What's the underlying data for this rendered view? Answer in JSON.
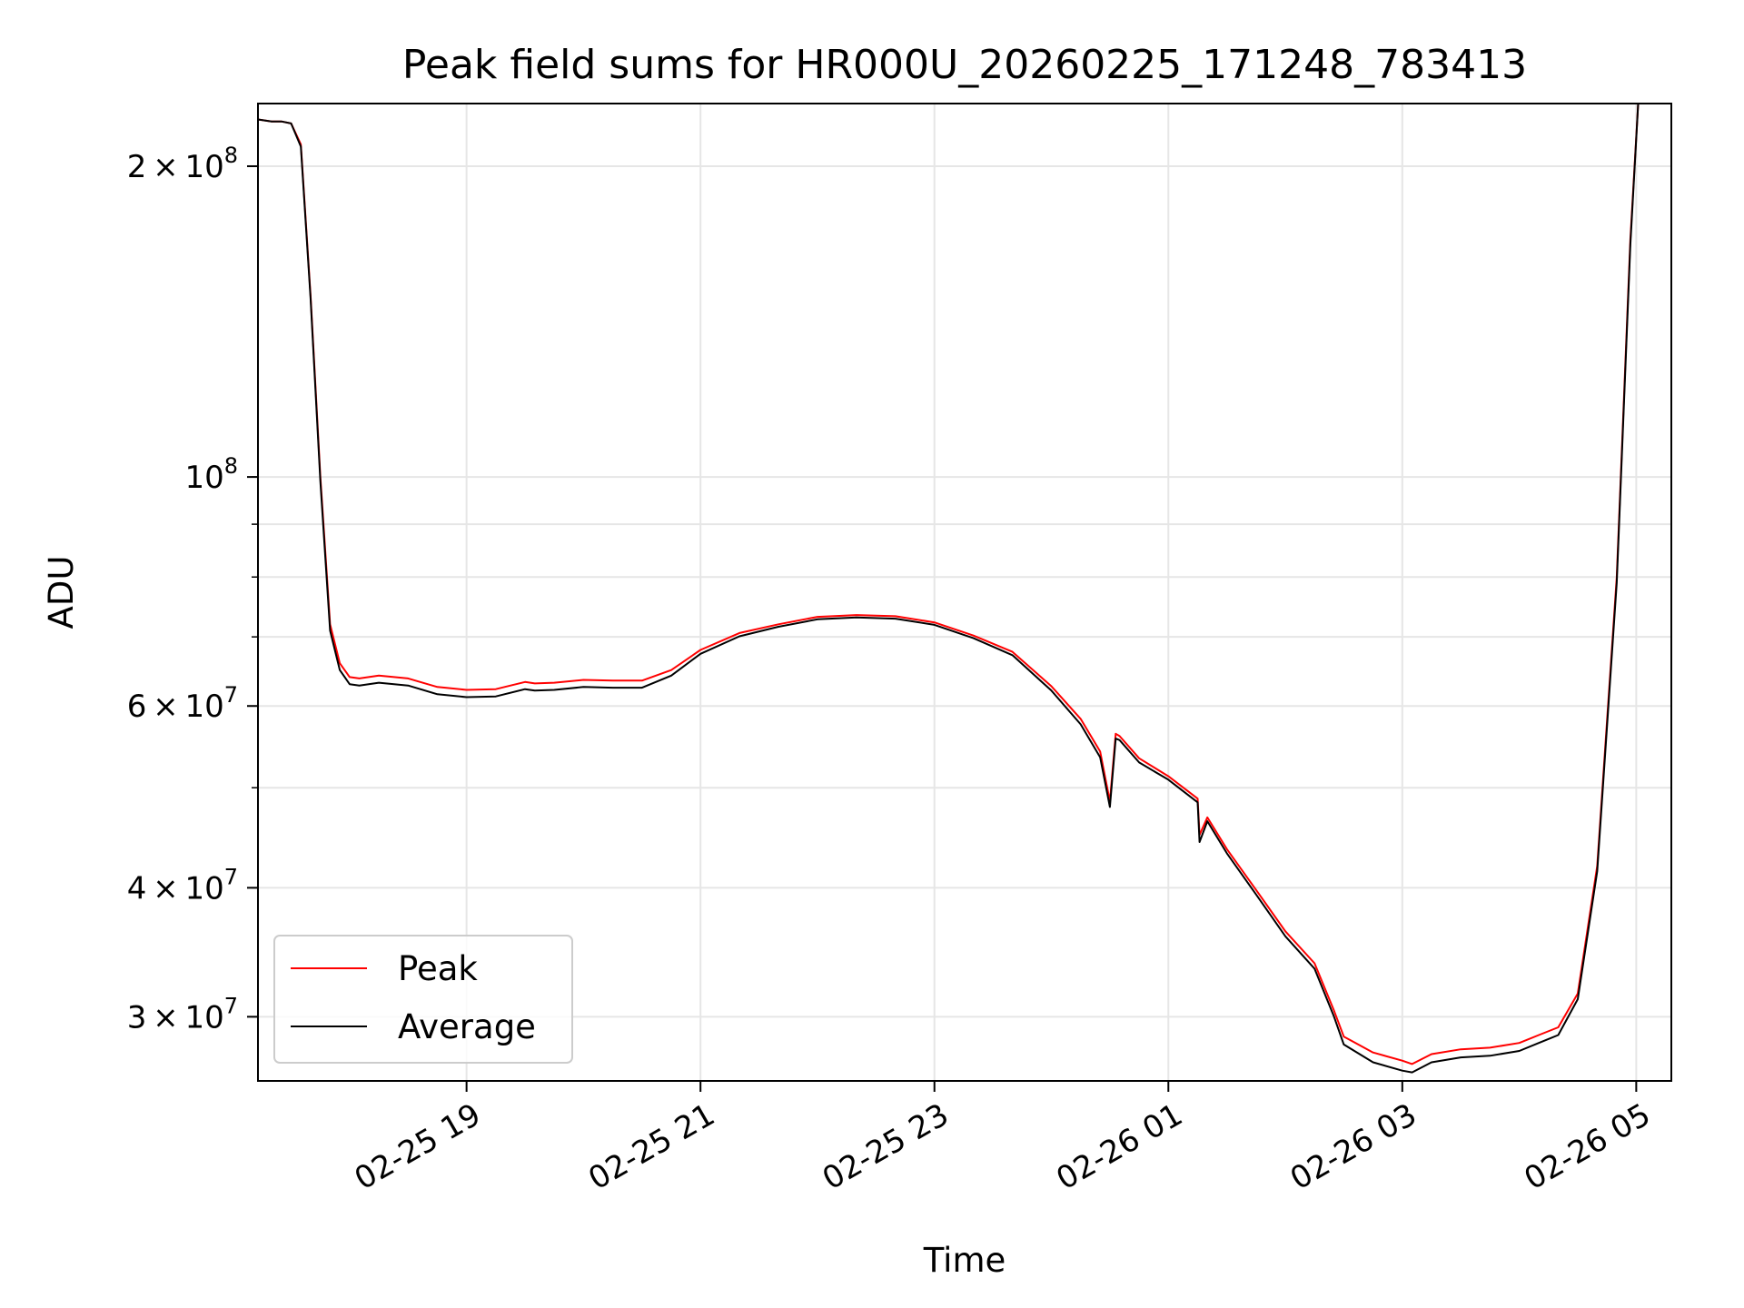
{
  "chart_data": {
    "type": "line",
    "title": "Peak field sums for HR000U_20260225_171248_783413",
    "xlabel": "Time",
    "ylabel": "ADU",
    "y_scale": "log",
    "grid": true,
    "legend_position": "lower-left",
    "xlim": [
      "2026-02-25 17:13",
      "2026-02-26 05:18"
    ],
    "ylim": [
      26000000,
      230000000
    ],
    "x_ticks": [
      {
        "value": "2026-02-25 19:00",
        "label": "02-25 19"
      },
      {
        "value": "2026-02-25 21:00",
        "label": "02-25 21"
      },
      {
        "value": "2026-02-25 23:00",
        "label": "02-25 23"
      },
      {
        "value": "2026-02-26 01:00",
        "label": "02-26 01"
      },
      {
        "value": "2026-02-26 03:00",
        "label": "02-26 03"
      },
      {
        "value": "2026-02-26 05:00",
        "label": "02-26 05"
      }
    ],
    "y_ticks": [
      {
        "value": 30000000,
        "base": "3",
        "times": "×",
        "exp_base": "10",
        "exp": "7"
      },
      {
        "value": 40000000,
        "base": "4",
        "times": "×",
        "exp_base": "10",
        "exp": "7"
      },
      {
        "value": 60000000,
        "base": "6",
        "times": "×",
        "exp_base": "10",
        "exp": "7"
      },
      {
        "value": 100000000,
        "base": "",
        "times": "",
        "exp_base": "10",
        "exp": "8"
      },
      {
        "value": 200000000,
        "base": "2",
        "times": "×",
        "exp_base": "10",
        "exp": "8"
      }
    ],
    "series": [
      {
        "name": "Peak",
        "color": "#ff0000",
        "x": [
          "2026-02-25 17:13",
          "2026-02-25 17:20",
          "2026-02-25 17:25",
          "2026-02-25 17:30",
          "2026-02-25 17:35",
          "2026-02-25 17:40",
          "2026-02-25 17:45",
          "2026-02-25 17:50",
          "2026-02-25 17:55",
          "2026-02-25 18:00",
          "2026-02-25 18:05",
          "2026-02-25 18:15",
          "2026-02-25 18:30",
          "2026-02-25 18:45",
          "2026-02-25 19:00",
          "2026-02-25 19:15",
          "2026-02-25 19:30",
          "2026-02-25 19:35",
          "2026-02-25 19:45",
          "2026-02-25 20:00",
          "2026-02-25 20:15",
          "2026-02-25 20:30",
          "2026-02-25 20:45",
          "2026-02-25 21:00",
          "2026-02-25 21:20",
          "2026-02-25 21:40",
          "2026-02-25 22:00",
          "2026-02-25 22:20",
          "2026-02-25 22:40",
          "2026-02-25 23:00",
          "2026-02-25 23:20",
          "2026-02-25 23:40",
          "2026-02-26 00:00",
          "2026-02-26 00:15",
          "2026-02-26 00:25",
          "2026-02-26 00:30",
          "2026-02-26 00:33",
          "2026-02-26 00:35",
          "2026-02-26 00:45",
          "2026-02-26 01:00",
          "2026-02-26 01:15",
          "2026-02-26 01:16",
          "2026-02-26 01:20",
          "2026-02-26 01:30",
          "2026-02-26 01:45",
          "2026-02-26 02:00",
          "2026-02-26 02:15",
          "2026-02-26 02:25",
          "2026-02-26 02:30",
          "2026-02-26 02:45",
          "2026-02-26 03:00",
          "2026-02-26 03:05",
          "2026-02-26 03:15",
          "2026-02-26 03:30",
          "2026-02-26 03:45",
          "2026-02-26 04:00",
          "2026-02-26 04:10",
          "2026-02-26 04:20",
          "2026-02-26 04:30",
          "2026-02-26 04:40",
          "2026-02-26 04:50",
          "2026-02-26 04:57",
          "2026-02-26 05:01"
        ],
        "values": [
          222000000,
          221000000,
          221000000,
          220000000,
          210000000,
          150000000,
          100000000,
          72000000,
          66000000,
          64000000,
          63800000,
          64200000,
          63800000,
          62600000,
          62200000,
          62300000,
          63300000,
          63100000,
          63200000,
          63600000,
          63500000,
          63500000,
          65000000,
          68000000,
          70600000,
          72000000,
          73200000,
          73500000,
          73300000,
          72300000,
          70200000,
          67700000,
          62700000,
          58300000,
          54200000,
          48500000,
          56400000,
          56100000,
          53400000,
          51300000,
          48800000,
          45000000,
          46800000,
          43600000,
          39800000,
          36300000,
          33800000,
          30400000,
          28700000,
          27700000,
          27200000,
          27000000,
          27600000,
          27900000,
          28000000,
          28300000,
          28800000,
          29300000,
          31600000,
          42000000,
          80000000,
          170000000,
          230000000
        ]
      },
      {
        "name": "Average",
        "color": "#000000",
        "x": [
          "2026-02-25 17:13",
          "2026-02-25 17:20",
          "2026-02-25 17:25",
          "2026-02-25 17:30",
          "2026-02-25 17:35",
          "2026-02-25 17:40",
          "2026-02-25 17:45",
          "2026-02-25 17:50",
          "2026-02-25 17:55",
          "2026-02-25 18:00",
          "2026-02-25 18:05",
          "2026-02-25 18:15",
          "2026-02-25 18:30",
          "2026-02-25 18:45",
          "2026-02-25 19:00",
          "2026-02-25 19:15",
          "2026-02-25 19:30",
          "2026-02-25 19:35",
          "2026-02-25 19:45",
          "2026-02-25 20:00",
          "2026-02-25 20:15",
          "2026-02-25 20:30",
          "2026-02-25 20:45",
          "2026-02-25 21:00",
          "2026-02-25 21:20",
          "2026-02-25 21:40",
          "2026-02-25 22:00",
          "2026-02-25 22:20",
          "2026-02-25 22:40",
          "2026-02-25 23:00",
          "2026-02-25 23:20",
          "2026-02-25 23:40",
          "2026-02-26 00:00",
          "2026-02-26 00:15",
          "2026-02-26 00:25",
          "2026-02-26 00:30",
          "2026-02-26 00:33",
          "2026-02-26 00:35",
          "2026-02-26 00:45",
          "2026-02-26 01:00",
          "2026-02-26 01:15",
          "2026-02-26 01:16",
          "2026-02-26 01:20",
          "2026-02-26 01:30",
          "2026-02-26 01:45",
          "2026-02-26 02:00",
          "2026-02-26 02:15",
          "2026-02-26 02:25",
          "2026-02-26 02:30",
          "2026-02-26 02:45",
          "2026-02-26 03:00",
          "2026-02-26 03:05",
          "2026-02-26 03:15",
          "2026-02-26 03:30",
          "2026-02-26 03:45",
          "2026-02-26 04:00",
          "2026-02-26 04:10",
          "2026-02-26 04:20",
          "2026-02-26 04:30",
          "2026-02-26 04:40",
          "2026-02-26 04:50",
          "2026-02-26 04:57",
          "2026-02-26 05:01"
        ],
        "values": [
          222000000,
          221000000,
          221000000,
          220000000,
          209000000,
          149000000,
          99000000,
          71000000,
          65000000,
          63000000,
          62800000,
          63200000,
          62800000,
          61600000,
          61200000,
          61300000,
          62300000,
          62100000,
          62200000,
          62600000,
          62500000,
          62500000,
          64200000,
          67400000,
          70100000,
          71600000,
          72800000,
          73100000,
          72900000,
          71900000,
          69800000,
          67200000,
          62100000,
          57600000,
          53500000,
          47900000,
          55800000,
          55600000,
          52900000,
          50900000,
          48400000,
          44300000,
          46400000,
          43200000,
          39400000,
          35900000,
          33400000,
          30000000,
          28200000,
          27100000,
          26600000,
          26500000,
          27100000,
          27400000,
          27500000,
          27800000,
          28300000,
          28800000,
          31200000,
          41500000,
          79000000,
          168000000,
          230000000
        ]
      }
    ]
  }
}
